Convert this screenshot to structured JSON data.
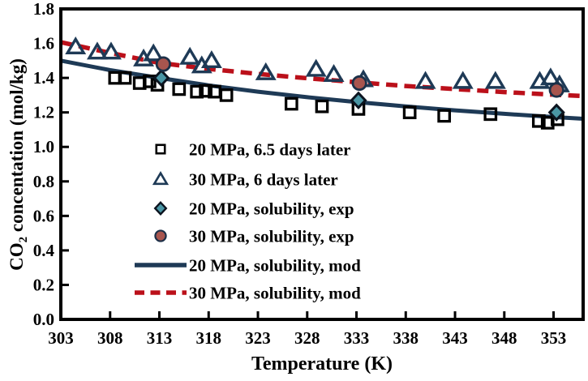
{
  "figure": {
    "background": "#ffffff"
  },
  "chart_data": {
    "type": "scatter",
    "title": "",
    "xlabel": "Temperature (K)",
    "ylabel": "CO2 concentation (mol/kg)",
    "ylabel_parts": {
      "prefix": "CO",
      "subscript": "2",
      "suffix": " concentation (mol/kg)"
    },
    "xlim": [
      303,
      356
    ],
    "ylim": [
      0.0,
      1.8
    ],
    "xticks": [
      303,
      308,
      313,
      318,
      323,
      328,
      333,
      338,
      343,
      348,
      353
    ],
    "yticks": [
      0.0,
      0.2,
      0.4,
      0.6,
      0.8,
      1.0,
      1.2,
      1.4,
      1.6,
      1.8
    ],
    "grid": false,
    "legend_position": "inside-center-left",
    "axis_color": "#000000",
    "colors": {
      "black": "#000000",
      "navy": "#1e3a56",
      "red": "#bb101a",
      "teal": "#4a96a5",
      "brick": "#a8554e"
    },
    "series": [
      {
        "name": "20 MPa, 6.5 days later",
        "kind": "scatter",
        "marker": "square-open",
        "color": "#000000",
        "points": [
          [
            308.5,
            1.4
          ],
          [
            309.5,
            1.4
          ],
          [
            311.0,
            1.37
          ],
          [
            312.0,
            1.38
          ],
          [
            312.8,
            1.36
          ],
          [
            315.0,
            1.335
          ],
          [
            316.8,
            1.32
          ],
          [
            317.7,
            1.325
          ],
          [
            318.6,
            1.32
          ],
          [
            319.8,
            1.3
          ],
          [
            326.4,
            1.25
          ],
          [
            329.5,
            1.235
          ],
          [
            333.2,
            1.22
          ],
          [
            338.4,
            1.2
          ],
          [
            341.9,
            1.18
          ],
          [
            346.6,
            1.19
          ],
          [
            351.5,
            1.15
          ],
          [
            352.4,
            1.14
          ],
          [
            353.4,
            1.16
          ]
        ]
      },
      {
        "name": "30 MPa, 6 days later",
        "kind": "scatter",
        "marker": "triangle-open",
        "color": "#1e3a56",
        "points": [
          [
            304.5,
            1.58
          ],
          [
            306.7,
            1.55
          ],
          [
            308.1,
            1.55
          ],
          [
            311.4,
            1.51
          ],
          [
            312.4,
            1.54
          ],
          [
            316.1,
            1.52
          ],
          [
            317.3,
            1.47
          ],
          [
            318.3,
            1.5
          ],
          [
            323.8,
            1.43
          ],
          [
            328.9,
            1.45
          ],
          [
            330.7,
            1.42
          ],
          [
            333.7,
            1.39
          ],
          [
            340.0,
            1.38
          ],
          [
            343.8,
            1.38
          ],
          [
            347.1,
            1.38
          ],
          [
            351.6,
            1.38
          ],
          [
            352.7,
            1.4
          ],
          [
            353.6,
            1.36
          ]
        ]
      },
      {
        "name": "20 MPa, solubility, exp",
        "kind": "scatter",
        "marker": "diamond-filled",
        "color": "#4a96a5",
        "stroke": "#0c1420",
        "points": [
          [
            313.2,
            1.4
          ],
          [
            333.2,
            1.27
          ],
          [
            353.3,
            1.2
          ]
        ]
      },
      {
        "name": "30 MPa, solubility, exp",
        "kind": "scatter",
        "marker": "circle-filled",
        "color": "#a8554e",
        "stroke": "#1c3048",
        "points": [
          [
            313.4,
            1.48
          ],
          [
            333.3,
            1.37
          ],
          [
            353.3,
            1.33
          ]
        ]
      },
      {
        "name": "20 MPa, solubility, mod",
        "kind": "line",
        "style": "solid",
        "color": "#1e3a56",
        "points": [
          [
            303,
            1.5
          ],
          [
            308,
            1.445
          ],
          [
            313,
            1.4
          ],
          [
            318,
            1.357
          ],
          [
            323,
            1.32
          ],
          [
            328,
            1.288
          ],
          [
            333,
            1.26
          ],
          [
            338,
            1.235
          ],
          [
            343,
            1.212
          ],
          [
            348,
            1.192
          ],
          [
            353,
            1.173
          ],
          [
            356,
            1.163
          ]
        ]
      },
      {
        "name": "30 MPa, solubility, mod",
        "kind": "line",
        "style": "dashed",
        "color": "#bb101a",
        "points": [
          [
            303,
            1.607
          ],
          [
            308,
            1.545
          ],
          [
            313,
            1.487
          ],
          [
            318,
            1.452
          ],
          [
            323,
            1.423
          ],
          [
            328,
            1.398
          ],
          [
            333,
            1.375
          ],
          [
            338,
            1.353
          ],
          [
            343,
            1.335
          ],
          [
            348,
            1.318
          ],
          [
            353,
            1.303
          ],
          [
            356,
            1.295
          ]
        ]
      }
    ]
  }
}
